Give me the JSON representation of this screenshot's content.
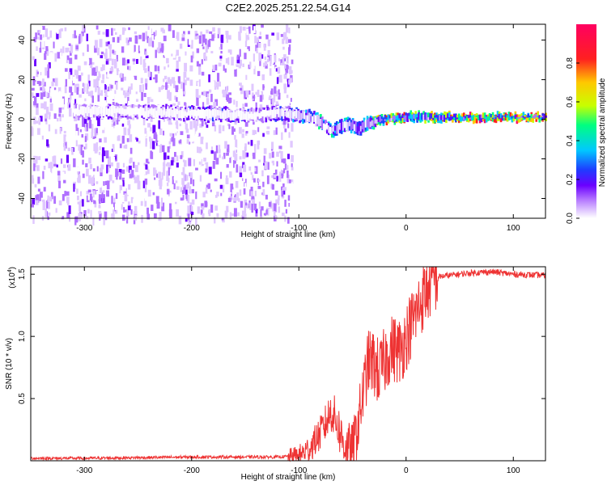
{
  "title": "C2E2.2025.251.22.54.G14",
  "colors": {
    "snr_line": "#ee3333",
    "axis": "#000000",
    "spectrum_background": "#ffffff",
    "colormap": [
      "#ffffff",
      "#e0c8ff",
      "#b070ff",
      "#6a00ff",
      "#1e3cff",
      "#00c8ff",
      "#00ff80",
      "#c8ff00",
      "#ffc800",
      "#ff2020",
      "#ff0060"
    ]
  },
  "chart_data": [
    {
      "id": "spectrogram",
      "type": "heatmap",
      "xlabel": "Height of straight line (km)",
      "ylabel": "Frequency (Hz)",
      "xlim": [
        -350,
        130
      ],
      "ylim": [
        -50,
        48
      ],
      "x_ticks": [
        -300,
        -200,
        -100,
        0,
        100
      ],
      "y_ticks": [
        -40,
        -20,
        0,
        20,
        40
      ],
      "colorbar": {
        "label": "Normalized spectral amplitude",
        "range": [
          0.0,
          1.0
        ],
        "ticks": [
          0.0,
          0.2,
          0.4,
          0.6,
          0.8
        ]
      },
      "noise_region_x": [
        -350,
        -115
      ],
      "signal_track": {
        "x": [
          -310,
          -260,
          -200,
          -150,
          -120,
          -100,
          -85,
          -75,
          -70,
          -60,
          -50,
          -45,
          -40,
          -30,
          -20,
          0,
          20,
          60,
          100,
          130
        ],
        "freq": [
          4,
          4,
          3,
          2,
          3,
          2,
          0,
          -4,
          -6,
          -3,
          -3,
          -5,
          -3,
          -1,
          0,
          1,
          1,
          1,
          1,
          1
        ],
        "amplitude": [
          0.3,
          0.3,
          0.35,
          0.35,
          0.45,
          0.5,
          0.55,
          0.6,
          0.65,
          0.6,
          0.6,
          0.65,
          0.7,
          0.75,
          0.85,
          0.9,
          0.8,
          0.95,
          0.95,
          0.95
        ]
      }
    },
    {
      "id": "snr",
      "type": "line",
      "xlabel": "Height of straight line (km)",
      "ylabel": "SNR (10 * v/v)",
      "y_multiplier_label": "(x10",
      "y_multiplier_exponent": "4",
      "xlim": [
        -350,
        130
      ],
      "ylim": [
        0,
        1.56
      ],
      "x_ticks": [
        -300,
        -200,
        -100,
        0,
        100
      ],
      "y_ticks": [
        0.5,
        1.0,
        1.5
      ],
      "y_tick_labels": [
        "0.5",
        "1.0",
        "1.5"
      ],
      "series": [
        {
          "name": "SNR",
          "x": [
            -350,
            -300,
            -200,
            -150,
            -120,
            -100,
            -90,
            -80,
            -75,
            -70,
            -65,
            -60,
            -55,
            -50,
            -45,
            -40,
            -35,
            -30,
            -25,
            -20,
            -15,
            -10,
            -5,
            0,
            5,
            10,
            15,
            20,
            25,
            30,
            40,
            60,
            80,
            100,
            130
          ],
          "values": [
            0.02,
            0.02,
            0.03,
            0.03,
            0.03,
            0.04,
            0.1,
            0.22,
            0.3,
            0.4,
            0.32,
            0.18,
            0.1,
            0.08,
            0.28,
            0.55,
            0.8,
            0.78,
            0.7,
            0.8,
            0.9,
            0.9,
            0.88,
            1.0,
            1.1,
            1.2,
            1.3,
            1.38,
            1.45,
            1.48,
            1.49,
            1.51,
            1.52,
            1.5,
            1.49
          ]
        }
      ]
    }
  ]
}
